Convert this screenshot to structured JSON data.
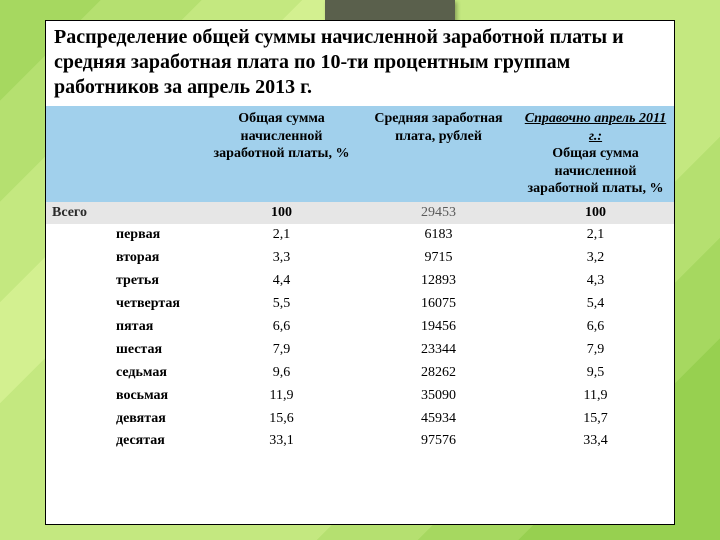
{
  "slide": {
    "title": "Распределение общей суммы начисленной заработной платы и средняя заработная плата по 10-ти процентным группам работников за апрель 2013 г.",
    "accent_box_color": "#5a604c",
    "content_bg": "#ffffff"
  },
  "table": {
    "header_bg": "#a1d0ec",
    "totals_bg": "#e6e6e6",
    "columns": [
      {
        "label": ""
      },
      {
        "label": "Общая сумма начисленной заработной платы, %"
      },
      {
        "label": "Средняя заработная плата, рублей"
      },
      {
        "ref_ital": "Справочно апрель 2011 г.:",
        "ref_rest": "Общая сумма начисленной заработной платы, %"
      }
    ],
    "totals": {
      "label": "Всего",
      "total_share": "100",
      "avg_wage": "29453",
      "ref_share": "100"
    },
    "rows": [
      {
        "label": "первая",
        "total_share": "2,1",
        "avg_wage": "6183",
        "ref_share": "2,1"
      },
      {
        "label": "вторая",
        "total_share": "3,3",
        "avg_wage": "9715",
        "ref_share": "3,2"
      },
      {
        "label": "третья",
        "total_share": "4,4",
        "avg_wage": "12893",
        "ref_share": "4,3"
      },
      {
        "label": "четвертая",
        "total_share": "5,5",
        "avg_wage": "16075",
        "ref_share": "5,4"
      },
      {
        "label": "пятая",
        "total_share": "6,6",
        "avg_wage": "19456",
        "ref_share": "6,6"
      },
      {
        "label": "шестая",
        "total_share": "7,9",
        "avg_wage": "23344",
        "ref_share": "7,9"
      },
      {
        "label": "седьмая",
        "total_share": "9,6",
        "avg_wage": "28262",
        "ref_share": "9,5"
      },
      {
        "label": "восьмая",
        "total_share": "11,9",
        "avg_wage": "35090",
        "ref_share": "11,9"
      },
      {
        "label": "девятая",
        "total_share": "15,6",
        "avg_wage": "45934",
        "ref_share": "15,7"
      },
      {
        "label": "десятая",
        "total_share": "33,1",
        "avg_wage": "97576",
        "ref_share": "33,4"
      }
    ]
  }
}
